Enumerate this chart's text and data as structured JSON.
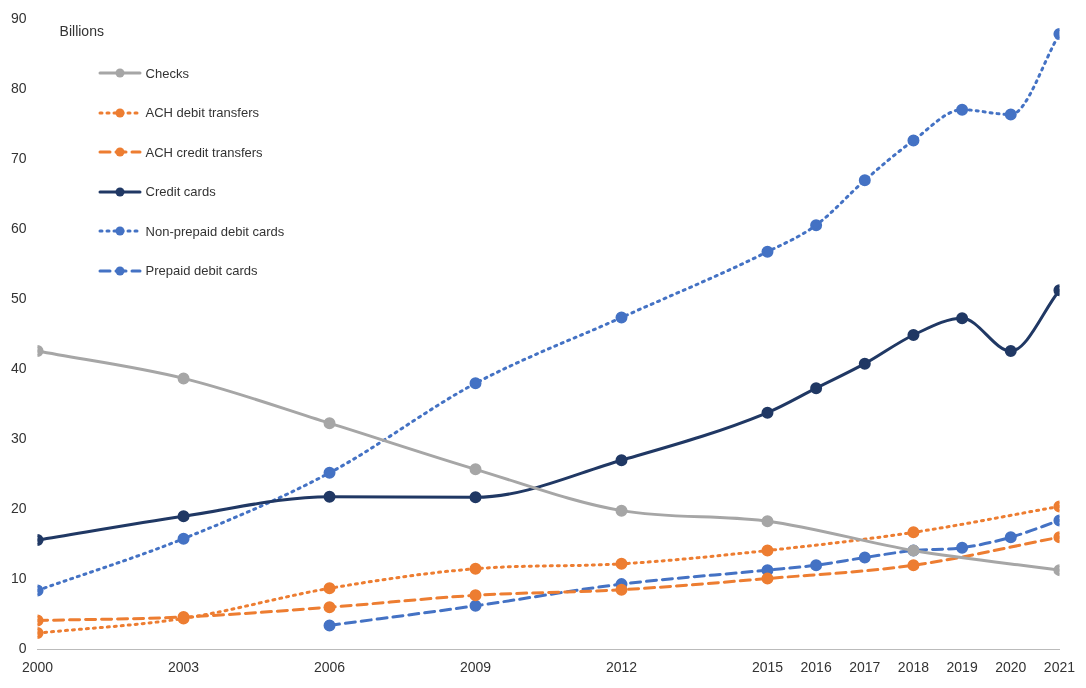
{
  "chart_data": {
    "type": "line",
    "ylabel": "Billions",
    "xlim": [
      2000,
      2021
    ],
    "xticks": [
      2000,
      2003,
      2006,
      2009,
      2012,
      2015,
      2016,
      2017,
      2018,
      2019,
      2020,
      2021
    ],
    "ylim": [
      0,
      90
    ],
    "yticks": [
      0,
      10,
      20,
      30,
      40,
      50,
      60,
      70,
      80,
      90
    ],
    "grid": false,
    "legend": "top left",
    "marker": "circle",
    "series": [
      {
        "name": "Checks",
        "color": "#a6a6a6",
        "line_style": "solid",
        "x": [
          2000,
          2003,
          2006,
          2009,
          2012,
          2015,
          2018,
          2021
        ],
        "values": [
          42.6,
          38.7,
          32.3,
          25.7,
          19.8,
          18.3,
          14.1,
          11.3
        ]
      },
      {
        "name": "ACH debit transfers",
        "color": "#ed7d31",
        "line_style": "dotted",
        "x": [
          2000,
          2003,
          2006,
          2009,
          2012,
          2015,
          2018,
          2021
        ],
        "values": [
          2.3,
          4.4,
          8.7,
          11.5,
          12.2,
          14.1,
          16.7,
          20.4
        ]
      },
      {
        "name": "ACH credit transfers",
        "color": "#ed7d31",
        "line_style": "dashed",
        "x": [
          2000,
          2003,
          2006,
          2009,
          2012,
          2015,
          2018,
          2021
        ],
        "values": [
          4.1,
          4.6,
          6.0,
          7.7,
          8.5,
          10.1,
          12.0,
          16.0
        ]
      },
      {
        "name": "Credit cards",
        "color": "#203864",
        "line_style": "solid",
        "x": [
          2000,
          2003,
          2006,
          2009,
          2012,
          2015,
          2016,
          2017,
          2018,
          2019,
          2020,
          2021
        ],
        "values": [
          15.6,
          19.0,
          21.8,
          21.7,
          27.0,
          33.8,
          37.3,
          40.8,
          44.9,
          47.3,
          42.6,
          51.3
        ]
      },
      {
        "name": "Non-prepaid debit cards",
        "color": "#4472c4",
        "line_style": "dotted",
        "x": [
          2000,
          2003,
          2006,
          2009,
          2012,
          2015,
          2016,
          2017,
          2018,
          2019,
          2020,
          2021
        ],
        "values": [
          8.4,
          15.8,
          25.2,
          38.0,
          47.4,
          56.8,
          60.6,
          67.0,
          72.7,
          77.1,
          76.4,
          87.9
        ]
      },
      {
        "name": "Prepaid debit cards",
        "color": "#4472c4",
        "line_style": "dashed",
        "x": [
          2006,
          2009,
          2012,
          2015,
          2016,
          2017,
          2018,
          2019,
          2020,
          2021
        ],
        "values": [
          3.4,
          6.2,
          9.3,
          11.3,
          12.0,
          13.1,
          14.1,
          14.5,
          16.0,
          18.4
        ]
      }
    ]
  }
}
